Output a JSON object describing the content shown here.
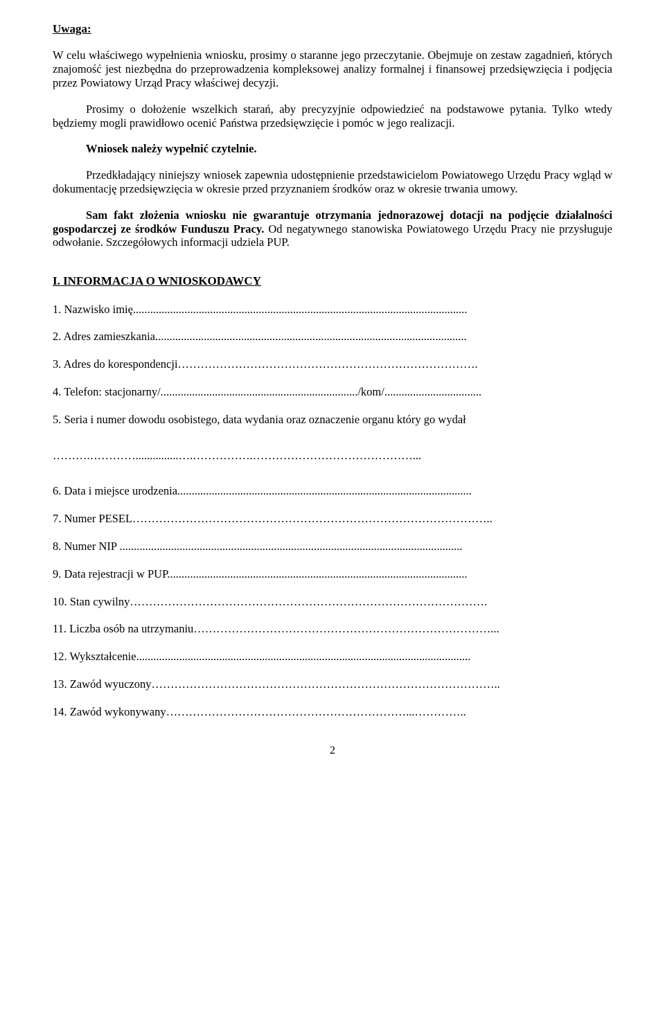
{
  "attention": {
    "heading": "Uwaga:"
  },
  "paragraphs": {
    "p1": "W celu właściwego wypełnienia wniosku, prosimy o staranne jego przeczytanie. Obejmuje on zestaw zagadnień, których znajomość jest niezbędna do przeprowadzenia kompleksowej analizy formalnej i finansowej przedsięwzięcia i podjęcia przez Powiatowy Urząd Pracy właściwej decyzji.",
    "p2": "Prosimy o dołożenie wszelkich starań, aby precyzyjnie odpowiedzieć na podstawowe pytania. Tylko wtedy będziemy mogli prawidłowo ocenić Państwa przedsięwzięcie i pomóc w jego realizacji.",
    "p3": "Wniosek należy wypełnić czytelnie.",
    "p4": "Przedkładający niniejszy wniosek zapewnia udostępnienie przedstawicielom Powiatowego Urzędu Pracy wgląd w dokumentację przedsięwzięcia w okresie  przed przyznaniem środków oraz w okresie trwania umowy.",
    "p5_bold": "Sam fakt złożenia wniosku nie gwarantuje otrzymania jednorazowej dotacji na podjęcie działalności gospodarczej ze środków Funduszu Pracy.",
    "p5_rest": " Od negatywnego stanowiska Powiatowego Urzędu Pracy nie przysługuje odwołanie. Szczegółowych informacji udziela PUP."
  },
  "section1": {
    "heading": "I.  INFORMACJA O WNIOSKODAWCY",
    "items": {
      "i1": "1.   Nazwisko imię.....................................................................................................................",
      "i2": "2.   Adres zamieszkania.............................................................................................................",
      "i3": "3.   Adres do korespondencji…………………………………………………………………….",
      "i4": "4.   Telefon: stacjonarny/...................................................................../kom/..................................",
      "i5": "5.   Seria i numer dowodu osobistego, data wydania oraz oznaczenie organu który go wydał",
      "i5b": "     ……….…………...............….…………….……………………………………...",
      "i6": "6.   Data i miejsce urodzenia.......................................................................................................",
      "i7": "7.   Numer PESEL…………………………………………………………………………………..",
      "i8": "8.   Numer NIP  ........................................................................................................................",
      "i9": "9.   Data rejestracji w PUP.........................................................................................................",
      "i10": "10. Stan cywilny………………………………………………………………………………….",
      "i11": "11. Liczba osób na utrzymaniu……………………………………………………………………...",
      "i12": "12. Wykształcenie.....................................................................................................................",
      "i13": "13. Zawód wyuczony………………………………………………………………………………..",
      "i14": "14. Zawód wykonywany………………………………………………………...………….."
    }
  },
  "pageNumber": "2"
}
